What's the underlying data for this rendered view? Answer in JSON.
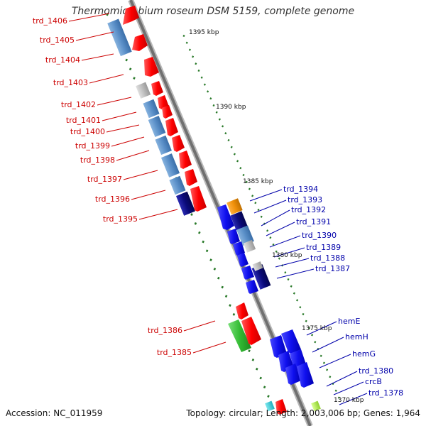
{
  "title": "Thermomicrobium roseum DSM 5159, complete genome",
  "footer": {
    "accession": "Accession: NC_011959",
    "summary": "Topology: circular; Length: 2,003,006 bp; Genes: 1,964"
  },
  "scale_labels": [
    "1395 kbp",
    "1390 kbp",
    "1385 kbp",
    "1380 kbp",
    "1375 kbp",
    "1370 kbp"
  ],
  "left_labels": [
    "trd_1406",
    "trd_1405",
    "trd_1404",
    "trd_1403",
    "trd_1402",
    "trd_1401",
    "trd_1400",
    "trd_1399",
    "trd_1398",
    "trd_1397",
    "trd_1396",
    "trd_1395",
    "trd_1386",
    "trd_1385"
  ],
  "right_labels": [
    "trd_1394",
    "trd_1393",
    "trd_1392",
    "trd_1391",
    "trd_1390",
    "trd_1389",
    "trd_1388",
    "trd_1387",
    "hemE",
    "hemH",
    "hemG",
    "trd_1380",
    "crcB",
    "trd_1378"
  ],
  "colors": {
    "label_red": "#cc0000",
    "label_blue": "#0000aa",
    "gene_red": "#ff0000",
    "gene_blue": "#1010ee",
    "gene_steel": "#5a8fc8",
    "gene_navy": "#0a0a7a",
    "gene_orange": "#f0900a",
    "gene_green": "#33bb33",
    "gene_gray": "#bdbdbd",
    "backbone": "#888888",
    "tick": "#2a7a2a"
  }
}
